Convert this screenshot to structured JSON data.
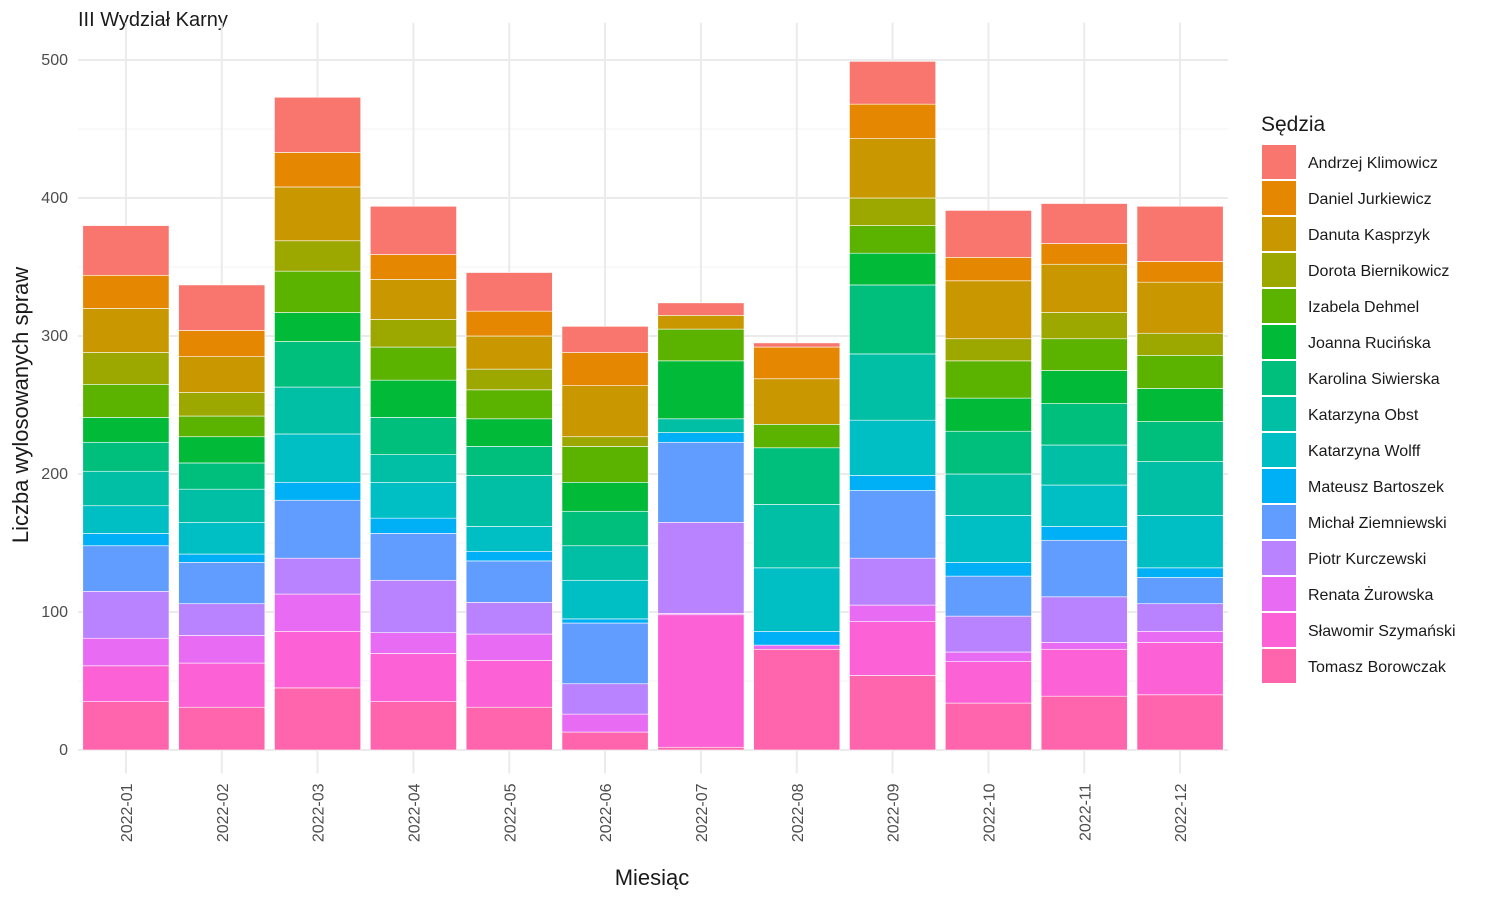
{
  "chart_data": {
    "type": "bar",
    "stacked": true,
    "title": "III Wydział Karny",
    "xlabel": "Miesiąc",
    "ylabel": "Liczba wylosowanych spraw",
    "ylim": [
      -17,
      527
    ],
    "yticks": [
      0,
      100,
      200,
      300,
      400,
      500
    ],
    "grid": true,
    "legend_title": "Sędzia",
    "legend_position": "right",
    "categories": [
      "2022-01",
      "2022-02",
      "2022-03",
      "2022-04",
      "2022-05",
      "2022-06",
      "2022-07",
      "2022-08",
      "2022-09",
      "2022-10",
      "2022-11",
      "2022-12"
    ],
    "series": [
      {
        "name": "Tomasz Borowczak",
        "color": "#FF65AC",
        "values": [
          35,
          31,
          45,
          35,
          31,
          13,
          2,
          73,
          54,
          34,
          39,
          40
        ]
      },
      {
        "name": "Sławomir Szymański",
        "color": "#FC61D5",
        "values": [
          26,
          32,
          41,
          35,
          34,
          0,
          96,
          0,
          39,
          30,
          34,
          38
        ]
      },
      {
        "name": "Renata Żurowska",
        "color": "#E76BF3",
        "values": [
          20,
          20,
          27,
          15,
          19,
          13,
          1,
          3,
          12,
          7,
          5,
          8
        ]
      },
      {
        "name": "Piotr Kurczewski",
        "color": "#B983FF",
        "values": [
          34,
          23,
          26,
          38,
          23,
          22,
          66,
          0,
          34,
          26,
          33,
          20
        ]
      },
      {
        "name": "Michał Ziemniewski",
        "color": "#619CFF",
        "values": [
          33,
          30,
          42,
          34,
          30,
          44,
          58,
          0,
          49,
          29,
          41,
          19
        ]
      },
      {
        "name": "Mateusz Bartoszek",
        "color": "#00B0F6",
        "values": [
          9,
          6,
          13,
          11,
          7,
          3,
          7,
          10,
          11,
          10,
          10,
          7
        ]
      },
      {
        "name": "Katarzyna Wolff",
        "color": "#00BFC4",
        "values": [
          20,
          23,
          35,
          26,
          18,
          28,
          0,
          46,
          40,
          34,
          30,
          38
        ]
      },
      {
        "name": "Katarzyna Obst",
        "color": "#00BFA4",
        "values": [
          25,
          24,
          34,
          20,
          37,
          25,
          10,
          46,
          48,
          30,
          29,
          39
        ]
      },
      {
        "name": "Karolina Siwierska",
        "color": "#00BF7D",
        "values": [
          21,
          19,
          33,
          27,
          21,
          25,
          0,
          41,
          50,
          31,
          30,
          29
        ]
      },
      {
        "name": "Joanna Rucińska",
        "color": "#00BA38",
        "values": [
          18,
          19,
          21,
          27,
          20,
          21,
          42,
          0,
          23,
          24,
          24,
          24
        ]
      },
      {
        "name": "Izabela Dehmel",
        "color": "#5BB300",
        "values": [
          24,
          15,
          30,
          24,
          21,
          26,
          23,
          17,
          20,
          27,
          23,
          24
        ]
      },
      {
        "name": "Dorota Biernikowicz",
        "color": "#9CA700",
        "values": [
          23,
          17,
          22,
          20,
          15,
          7,
          0,
          0,
          20,
          16,
          19,
          16
        ]
      },
      {
        "name": "Danuta Kasprzyk",
        "color": "#C99800",
        "values": [
          32,
          26,
          39,
          29,
          24,
          37,
          10,
          33,
          43,
          42,
          35,
          37
        ]
      },
      {
        "name": "Daniel Jurkiewicz",
        "color": "#E58700",
        "values": [
          24,
          19,
          25,
          18,
          18,
          24,
          0,
          23,
          25,
          17,
          15,
          15
        ]
      },
      {
        "name": "Andrzej Klimowicz",
        "color": "#F8766D",
        "values": [
          36,
          33,
          40,
          35,
          28,
          19,
          9,
          3,
          31,
          34,
          29,
          40
        ]
      }
    ]
  }
}
